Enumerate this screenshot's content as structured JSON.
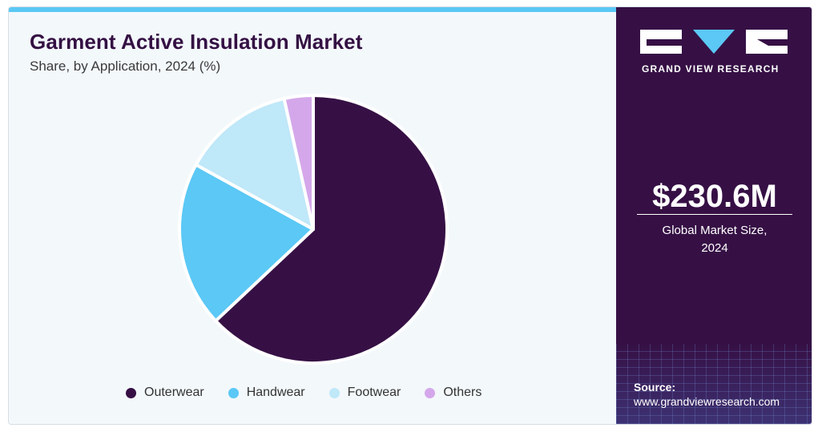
{
  "chart_data": {
    "type": "pie",
    "title": "Garment Active Insulation Market",
    "subtitle": "Share, by Application, 2024 (%)",
    "categories": [
      "Outerwear",
      "Handwear",
      "Footwear",
      "Others"
    ],
    "values": [
      63,
      20,
      13.5,
      3.5
    ],
    "colors": [
      "#361045",
      "#5bc8f5",
      "#bfe8f9",
      "#d4a7ea"
    ],
    "legend_position": "bottom"
  },
  "sidebar": {
    "brand": "GRAND VIEW RESEARCH",
    "market_value": "$230.6M",
    "market_label_line1": "Global Market Size,",
    "market_label_line2": "2024",
    "source_label": "Source:",
    "source_url": "www.grandviewresearch.com"
  }
}
